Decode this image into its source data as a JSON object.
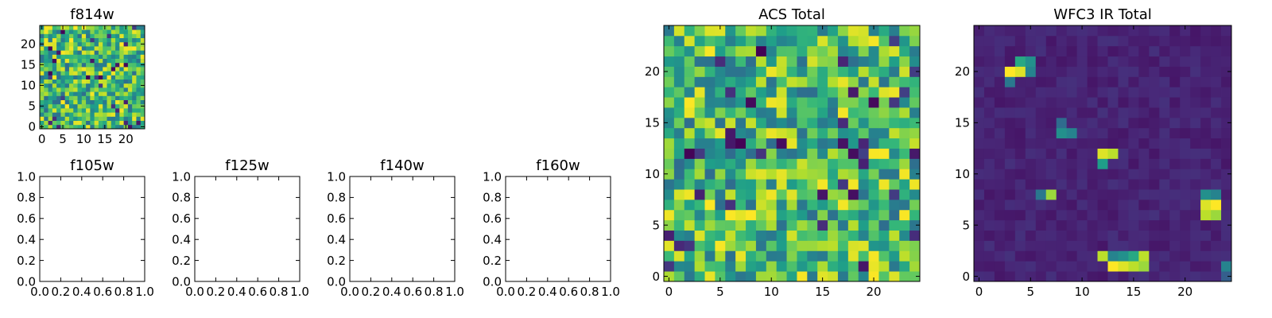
{
  "chart_data": [
    {
      "id": "f814w",
      "type": "heatmap",
      "title": "f814w",
      "xlabel": "",
      "ylabel": "",
      "xlim": [
        -0.5,
        24.5
      ],
      "ylim": [
        -0.5,
        24.5
      ],
      "xticks": [
        0,
        5,
        10,
        15,
        20
      ],
      "yticks": [
        0,
        5,
        10,
        15,
        20
      ],
      "colormap": "viridis",
      "grid_size": [
        25,
        25
      ],
      "value_range": [
        0,
        1
      ],
      "values_note": "noise"
    },
    {
      "id": "f105w",
      "type": "heatmap",
      "title": "f105w",
      "xlim": [
        0,
        1
      ],
      "ylim": [
        0,
        1
      ],
      "xticks": [
        "0.0",
        "0.2",
        "0.4",
        "0.6",
        "0.8",
        "1.0"
      ],
      "yticks": [
        "0.0",
        "0.2",
        "0.4",
        "0.6",
        "0.8",
        "1.0"
      ],
      "empty": true
    },
    {
      "id": "f125w",
      "type": "heatmap",
      "title": "f125w",
      "xlim": [
        0,
        1
      ],
      "ylim": [
        0,
        1
      ],
      "xticks": [
        "0.0",
        "0.2",
        "0.4",
        "0.6",
        "0.8",
        "1.0"
      ],
      "yticks": [
        "0.0",
        "0.2",
        "0.4",
        "0.6",
        "0.8",
        "1.0"
      ],
      "empty": true
    },
    {
      "id": "f140w",
      "type": "heatmap",
      "title": "f140w",
      "xlim": [
        0,
        1
      ],
      "ylim": [
        0,
        1
      ],
      "xticks": [
        "0.0",
        "0.2",
        "0.4",
        "0.6",
        "0.8",
        "1.0"
      ],
      "yticks": [
        "0.0",
        "0.2",
        "0.4",
        "0.6",
        "0.8",
        "1.0"
      ],
      "empty": true
    },
    {
      "id": "f160w",
      "type": "heatmap",
      "title": "f160w",
      "xlim": [
        0,
        1
      ],
      "ylim": [
        0,
        1
      ],
      "xticks": [
        "0.0",
        "0.2",
        "0.4",
        "0.6",
        "0.8",
        "1.0"
      ],
      "yticks": [
        "0.0",
        "0.2",
        "0.4",
        "0.6",
        "0.8",
        "1.0"
      ],
      "empty": true
    },
    {
      "id": "acs-total",
      "type": "heatmap",
      "title": "ACS Total",
      "xlim": [
        -0.5,
        24.5
      ],
      "ylim": [
        -0.5,
        24.5
      ],
      "xticks": [
        0,
        5,
        10,
        15,
        20
      ],
      "yticks": [
        0,
        5,
        10,
        15,
        20
      ],
      "colormap": "viridis",
      "grid_size": [
        25,
        25
      ],
      "value_range": [
        0,
        1
      ],
      "values_note": "noise"
    },
    {
      "id": "wfc3-ir-total",
      "type": "heatmap",
      "title": "WFC3 IR Total",
      "xlim": [
        -0.5,
        24.5
      ],
      "ylim": [
        -0.5,
        24.5
      ],
      "xticks": [
        0,
        5,
        10,
        15,
        20
      ],
      "yticks": [
        0,
        5,
        10,
        15,
        20
      ],
      "colormap": "viridis",
      "grid_size": [
        25,
        25
      ],
      "value_range": [
        0,
        1
      ],
      "background_level": 0.06,
      "bright_pixels": [
        {
          "x": 3,
          "y": 20,
          "v": 1.0
        },
        {
          "x": 4,
          "y": 20,
          "v": 0.95
        },
        {
          "x": 4,
          "y": 21,
          "v": 0.6
        },
        {
          "x": 5,
          "y": 21,
          "v": 0.5
        },
        {
          "x": 3,
          "y": 19,
          "v": 0.4
        },
        {
          "x": 5,
          "y": 20,
          "v": 0.45
        },
        {
          "x": 8,
          "y": 14,
          "v": 0.5
        },
        {
          "x": 9,
          "y": 14,
          "v": 0.45
        },
        {
          "x": 8,
          "y": 15,
          "v": 0.35
        },
        {
          "x": 12,
          "y": 12,
          "v": 0.95
        },
        {
          "x": 13,
          "y": 12,
          "v": 0.9
        },
        {
          "x": 12,
          "y": 11,
          "v": 0.55
        },
        {
          "x": 7,
          "y": 8,
          "v": 0.85
        },
        {
          "x": 6,
          "y": 8,
          "v": 0.4
        },
        {
          "x": 23,
          "y": 7,
          "v": 1.0
        },
        {
          "x": 22,
          "y": 7,
          "v": 0.95
        },
        {
          "x": 22,
          "y": 6,
          "v": 0.9
        },
        {
          "x": 23,
          "y": 6,
          "v": 0.85
        },
        {
          "x": 22,
          "y": 8,
          "v": 0.5
        },
        {
          "x": 23,
          "y": 8,
          "v": 0.45
        },
        {
          "x": 12,
          "y": 2,
          "v": 0.9
        },
        {
          "x": 13,
          "y": 1,
          "v": 1.0
        },
        {
          "x": 14,
          "y": 1,
          "v": 0.95
        },
        {
          "x": 15,
          "y": 1,
          "v": 0.9
        },
        {
          "x": 16,
          "y": 1,
          "v": 0.85
        },
        {
          "x": 15,
          "y": 2,
          "v": 0.6
        },
        {
          "x": 16,
          "y": 2,
          "v": 0.9
        },
        {
          "x": 14,
          "y": 2,
          "v": 0.5
        },
        {
          "x": 13,
          "y": 2,
          "v": 0.45
        },
        {
          "x": 24,
          "y": 1,
          "v": 0.45
        },
        {
          "x": 24,
          "y": 0,
          "v": 0.3
        }
      ]
    }
  ]
}
